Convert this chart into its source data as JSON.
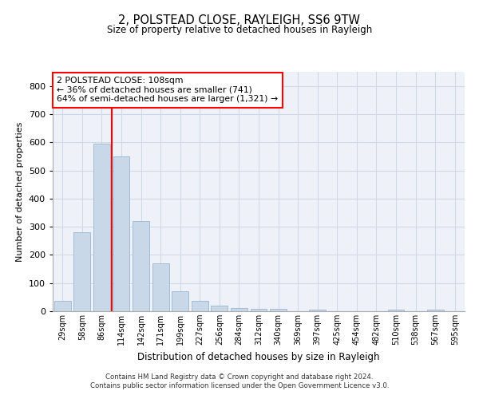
{
  "title1": "2, POLSTEAD CLOSE, RAYLEIGH, SS6 9TW",
  "title2": "Size of property relative to detached houses in Rayleigh",
  "xlabel": "Distribution of detached houses by size in Rayleigh",
  "ylabel": "Number of detached properties",
  "categories": [
    "29sqm",
    "58sqm",
    "86sqm",
    "114sqm",
    "142sqm",
    "171sqm",
    "199sqm",
    "227sqm",
    "256sqm",
    "284sqm",
    "312sqm",
    "340sqm",
    "369sqm",
    "397sqm",
    "425sqm",
    "454sqm",
    "482sqm",
    "510sqm",
    "538sqm",
    "567sqm",
    "595sqm"
  ],
  "values": [
    38,
    280,
    595,
    550,
    320,
    170,
    70,
    38,
    20,
    11,
    8,
    8,
    0,
    6,
    0,
    0,
    0,
    6,
    0,
    6,
    0
  ],
  "bar_color": "#c8d8e8",
  "bar_edge_color": "#8caccc",
  "grid_color": "#d0d8e8",
  "background_color": "#eef2f8",
  "vline_color": "red",
  "vline_index": 3,
  "annotation_text": "2 POLSTEAD CLOSE: 108sqm\n← 36% of detached houses are smaller (741)\n64% of semi-detached houses are larger (1,321) →",
  "annotation_box_color": "white",
  "annotation_box_edge": "red",
  "ylim": [
    0,
    850
  ],
  "yticks": [
    0,
    100,
    200,
    300,
    400,
    500,
    600,
    700,
    800
  ],
  "footer1": "Contains HM Land Registry data © Crown copyright and database right 2024.",
  "footer2": "Contains public sector information licensed under the Open Government Licence v3.0."
}
